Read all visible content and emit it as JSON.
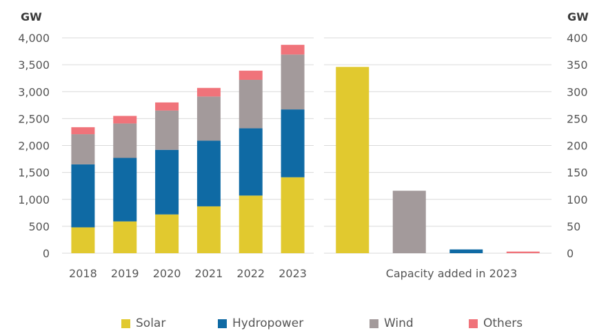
{
  "colors": {
    "solar": "#e1c92f",
    "hydropower": "#0f6aa4",
    "wind": "#a39a9b",
    "others": "#f0737a",
    "grid": "#d9d9d9"
  },
  "legend": [
    {
      "key": "solar",
      "label": "Solar"
    },
    {
      "key": "hydropower",
      "label": "Hydropower"
    },
    {
      "key": "wind",
      "label": "Wind"
    },
    {
      "key": "others",
      "label": "Others"
    }
  ],
  "chart_data": [
    {
      "type": "bar",
      "stacked": true,
      "unit_label": "GW",
      "categories": [
        "2018",
        "2019",
        "2020",
        "2021",
        "2022",
        "2023"
      ],
      "ylim": [
        0,
        4000
      ],
      "yticks": [
        "0",
        "500",
        "1,000",
        "1,500",
        "2,000",
        "2,500",
        "3,000",
        "3,500",
        "4,000"
      ],
      "ytick_values": [
        0,
        500,
        1000,
        1500,
        2000,
        2500,
        3000,
        3500,
        4000
      ],
      "grid": true,
      "series": [
        {
          "name": "Solar",
          "key": "solar",
          "values": [
            480,
            590,
            720,
            870,
            1070,
            1410
          ]
        },
        {
          "name": "Hydropower",
          "key": "hydropower",
          "values": [
            1170,
            1180,
            1200,
            1220,
            1250,
            1260
          ]
        },
        {
          "name": "Wind",
          "key": "wind",
          "values": [
            560,
            640,
            730,
            820,
            900,
            1020
          ]
        },
        {
          "name": "Others",
          "key": "others",
          "values": [
            130,
            140,
            150,
            160,
            170,
            180
          ]
        }
      ]
    },
    {
      "type": "bar",
      "unit_label": "GW",
      "xlabel": "Capacity added in 2023",
      "ylim": [
        0,
        400
      ],
      "yticks": [
        "0",
        "50",
        "100",
        "150",
        "200",
        "250",
        "300",
        "350",
        "400"
      ],
      "ytick_values": [
        0,
        50,
        100,
        150,
        200,
        250,
        300,
        350,
        400
      ],
      "grid": true,
      "bars": [
        {
          "key": "solar",
          "value": 346
        },
        {
          "key": "wind",
          "value": 116
        },
        {
          "key": "hydropower",
          "value": 7
        },
        {
          "key": "others",
          "value": 3
        }
      ]
    }
  ]
}
